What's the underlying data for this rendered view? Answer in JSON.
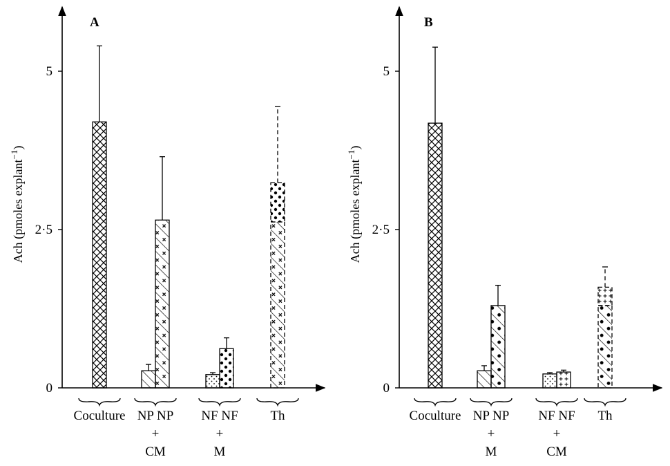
{
  "chart_data": [
    {
      "type": "bar",
      "panel_label": "A",
      "ylabel": "Ach (pmoles explant",
      "ylabel_sup": "−1",
      "ylabel_close": ")",
      "yticks": [
        "0",
        "2·5",
        "5"
      ],
      "ylim": [
        0,
        5.5
      ],
      "groups": [
        {
          "label": [
            "Coculture"
          ],
          "bars": [
            {
              "value": 4.2,
              "error": 1.2,
              "pattern": "crosshatch",
              "dashed": false
            }
          ]
        },
        {
          "label": [
            "NP NP",
            "+",
            "CM"
          ],
          "bars": [
            {
              "value": 0.27,
              "error": 0.1,
              "pattern": "diag",
              "dashed": false
            },
            {
              "value": 2.65,
              "error": 1.0,
              "pattern": "diagplus",
              "dashed": false
            }
          ]
        },
        {
          "label": [
            "NF NF",
            "+",
            "M"
          ],
          "bars": [
            {
              "value": 0.21,
              "error": 0.03,
              "pattern": "dots",
              "dashed": false
            },
            {
              "value": 0.62,
              "error": 0.17,
              "pattern": "stars",
              "dashed": false
            }
          ]
        },
        {
          "label": [
            "Th"
          ],
          "stacked": true,
          "error_dashed": true,
          "error": 1.2,
          "bars": [
            {
              "value": 2.62,
              "pattern": "diagplus",
              "dashed": true
            },
            {
              "value": 0.62,
              "pattern": "stars",
              "dashed": true
            }
          ]
        }
      ]
    },
    {
      "type": "bar",
      "panel_label": "B",
      "ylabel": "Ach (pmoles explant",
      "ylabel_sup": "−1",
      "ylabel_close": ")",
      "yticks": [
        "0",
        "2·5",
        "5"
      ],
      "ylim": [
        0,
        5.5
      ],
      "groups": [
        {
          "label": [
            "Coculture"
          ],
          "bars": [
            {
              "value": 4.18,
              "error": 1.2,
              "pattern": "crosshatch",
              "dashed": false
            }
          ]
        },
        {
          "label": [
            "NP NP",
            "+",
            "M"
          ],
          "bars": [
            {
              "value": 0.27,
              "error": 0.08,
              "pattern": "diag",
              "dashed": false
            },
            {
              "value": 1.3,
              "error": 0.32,
              "pattern": "diagstars",
              "dashed": false
            }
          ]
        },
        {
          "label": [
            "NF NF",
            "+",
            "CM"
          ],
          "bars": [
            {
              "value": 0.22,
              "error": 0.02,
              "pattern": "dots",
              "dashed": false
            },
            {
              "value": 0.25,
              "error": 0.03,
              "pattern": "plus",
              "dashed": false
            }
          ]
        },
        {
          "label": [
            "Th"
          ],
          "stacked": true,
          "error_dashed": true,
          "error": 0.32,
          "bars": [
            {
              "value": 1.3,
              "pattern": "diagstars",
              "dashed": true
            },
            {
              "value": 0.29,
              "pattern": "plus",
              "dashed": true
            }
          ]
        }
      ]
    }
  ]
}
